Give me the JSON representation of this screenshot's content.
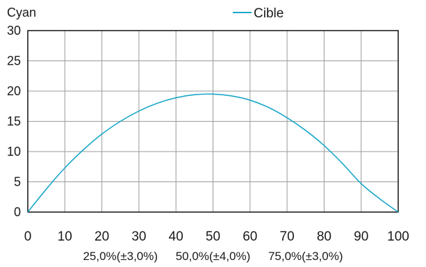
{
  "chart_data": {
    "type": "line",
    "ylabel": "Cyan",
    "xlim": [
      0,
      100
    ],
    "ylim": [
      0,
      30
    ],
    "x_ticks": [
      "0",
      "10",
      "20",
      "30",
      "40",
      "50",
      "60",
      "70",
      "80",
      "90",
      "100"
    ],
    "y_ticks": [
      "0",
      "5",
      "10",
      "15",
      "20",
      "25",
      "30"
    ],
    "grid": true,
    "legend": {
      "placement": "top-center",
      "entries": [
        "Cible"
      ]
    },
    "annotations": [
      "25,0%(±3,0%)",
      "50,0%(±4,0%)",
      "75,0%(±3,0%)"
    ],
    "colors": {
      "series": "#1aa7c8",
      "grid": "#9a9a9a",
      "axis": "#000000"
    },
    "series": [
      {
        "name": "Cible",
        "x": [
          0,
          5,
          10,
          15,
          20,
          25,
          30,
          35,
          40,
          45,
          50,
          55,
          60,
          65,
          70,
          75,
          80,
          85,
          90,
          95,
          100
        ],
        "y": [
          0,
          3.8,
          7.3,
          10.3,
          12.9,
          15.0,
          16.7,
          18.0,
          18.9,
          19.4,
          19.5,
          19.2,
          18.5,
          17.3,
          15.6,
          13.5,
          11.0,
          8.0,
          4.7,
          2.2,
          0
        ]
      }
    ]
  }
}
